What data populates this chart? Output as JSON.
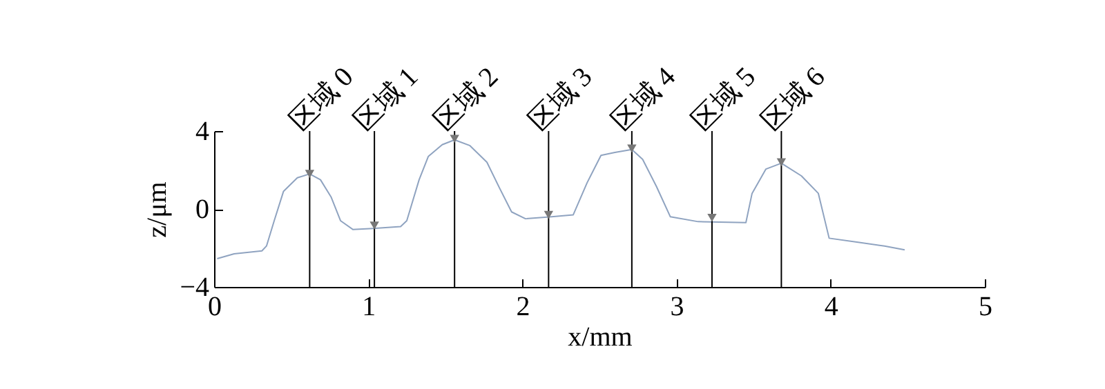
{
  "chart_data": {
    "type": "line",
    "xlabel": "x/mm",
    "ylabel": "z/μm",
    "xlim": [
      0,
      5
    ],
    "ylim": [
      -4,
      4
    ],
    "xticks": [
      0,
      1,
      2,
      3,
      4,
      5
    ],
    "yticks": [
      -4,
      0,
      4
    ],
    "grid": false,
    "series": [
      {
        "color": "#8fa3c0",
        "x": [
          0.02,
          0.13,
          0.31,
          0.34,
          0.39,
          0.45,
          0.54,
          0.62,
          0.69,
          0.76,
          0.82,
          0.9,
          1.03,
          1.21,
          1.25,
          1.33,
          1.39,
          1.48,
          1.56,
          1.66,
          1.77,
          1.85,
          1.93,
          2.02,
          2.19,
          2.33,
          2.42,
          2.51,
          2.6,
          2.71,
          2.78,
          2.87,
          2.96,
          3.14,
          3.45,
          3.49,
          3.58,
          3.68,
          3.81,
          3.92,
          3.99,
          4.17,
          4.35,
          4.48
        ],
        "values": [
          -2.55,
          -2.3,
          -2.15,
          -1.9,
          -0.6,
          0.9,
          1.6,
          1.8,
          1.5,
          0.6,
          -0.6,
          -1.05,
          -1.0,
          -0.9,
          -0.6,
          1.5,
          2.7,
          3.3,
          3.55,
          3.25,
          2.4,
          1.1,
          -0.15,
          -0.5,
          -0.4,
          -0.3,
          1.35,
          2.75,
          2.9,
          3.05,
          2.55,
          1.15,
          -0.4,
          -0.65,
          -0.7,
          0.8,
          2.05,
          2.35,
          1.7,
          0.8,
          -1.5,
          -1.7,
          -1.9,
          -2.1
        ]
      },
      {
        "type": "scatter",
        "color": "#777777",
        "marker": "triangle",
        "x": [
          0.62,
          1.04,
          1.56,
          2.17,
          2.71,
          3.23,
          3.68
        ],
        "values": [
          1.8,
          -0.85,
          3.6,
          -0.3,
          3.1,
          -0.45,
          2.4
        ]
      }
    ],
    "ref_lines": [
      {
        "axis": "x",
        "value": 0.62,
        "label": "区域 0",
        "color": "#000000"
      },
      {
        "axis": "x",
        "value": 1.04,
        "label": "区域 1",
        "color": "#000000"
      },
      {
        "axis": "x",
        "value": 1.56,
        "label": "区域 2",
        "color": "#000000"
      },
      {
        "axis": "x",
        "value": 2.17,
        "label": "区域 3",
        "color": "#000000"
      },
      {
        "axis": "x",
        "value": 2.71,
        "label": "区域 4",
        "color": "#000000"
      },
      {
        "axis": "x",
        "value": 3.23,
        "label": "区域 5",
        "color": "#000000"
      },
      {
        "axis": "x",
        "value": 3.68,
        "label": "区域 6",
        "color": "#000000"
      }
    ]
  }
}
